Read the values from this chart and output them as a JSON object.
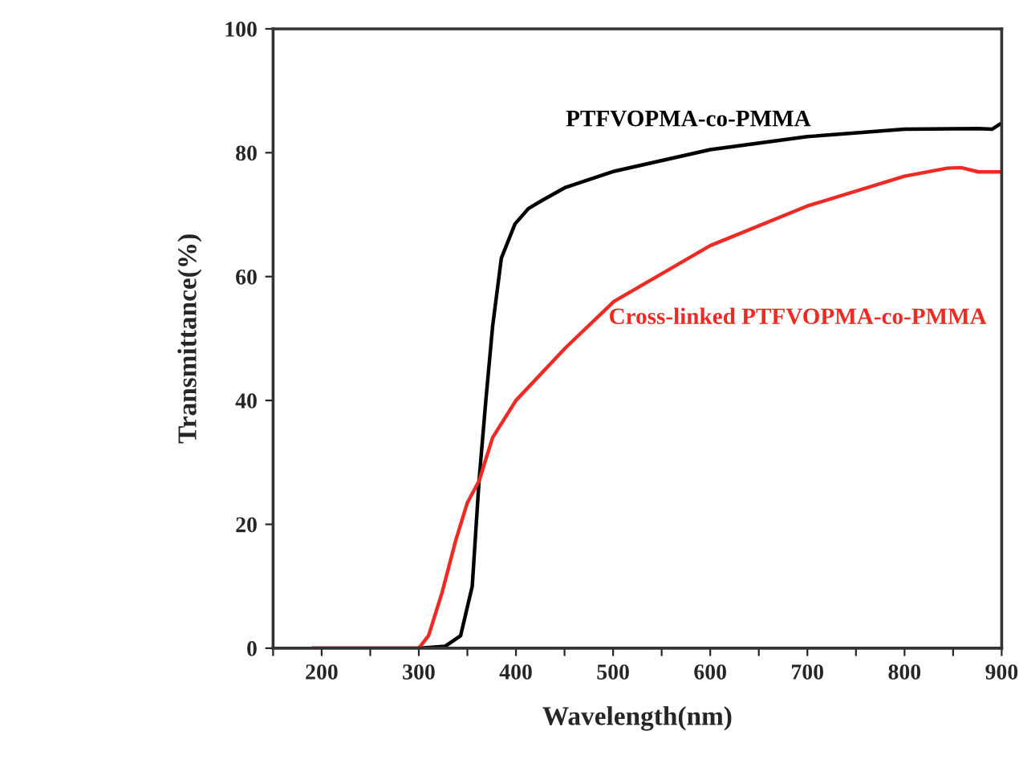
{
  "chart_data": {
    "type": "line",
    "xlabel": "Wavelength(nm)",
    "ylabel": "Transmittance(%)",
    "xlim": [
      150,
      900
    ],
    "ylim": [
      0,
      100
    ],
    "xticks": [
      {
        "value": 150,
        "label": null
      },
      200,
      {
        "value": 250,
        "label": null
      },
      300,
      {
        "value": 350,
        "label": null
      },
      400,
      {
        "value": 450,
        "label": null
      },
      500,
      {
        "value": 550,
        "label": null
      },
      600,
      {
        "value": 650,
        "label": null
      },
      700,
      {
        "value": 750,
        "label": null
      },
      800,
      {
        "value": 850,
        "label": null
      },
      900
    ],
    "yticks": [
      0,
      20,
      40,
      60,
      80,
      100
    ],
    "grid": false,
    "legend": false,
    "marker": "none",
    "line_style": "solid",
    "series": [
      {
        "name": "PTFVOPMA-co-PMMA",
        "color": "#000000",
        "x": [
          190,
          250,
          300,
          327,
          343,
          355,
          362,
          369,
          376,
          385,
          399,
          413,
          427,
          451,
          501,
          600,
          700,
          800,
          876,
          890,
          900
        ],
        "values": [
          0,
          0,
          0,
          0.3,
          2,
          10,
          27,
          40,
          52,
          63,
          68.5,
          71,
          72.3,
          74.4,
          77,
          80.5,
          82.6,
          83.8,
          83.9,
          83.8,
          84.8
        ]
      },
      {
        "name": "Cross-linked PTFVOPMA-co-PMMA",
        "color": "#ee2a24",
        "x": [
          190,
          250,
          300,
          310,
          324,
          338,
          350,
          362,
          376,
          400,
          451,
          501,
          600,
          700,
          800,
          844,
          858,
          876,
          900
        ],
        "values": [
          0,
          0,
          0,
          2,
          9,
          17.4,
          23.5,
          27,
          34,
          40,
          48.5,
          56,
          65,
          71.4,
          76.2,
          77.5,
          77.6,
          76.9,
          76.9
        ]
      }
    ]
  }
}
